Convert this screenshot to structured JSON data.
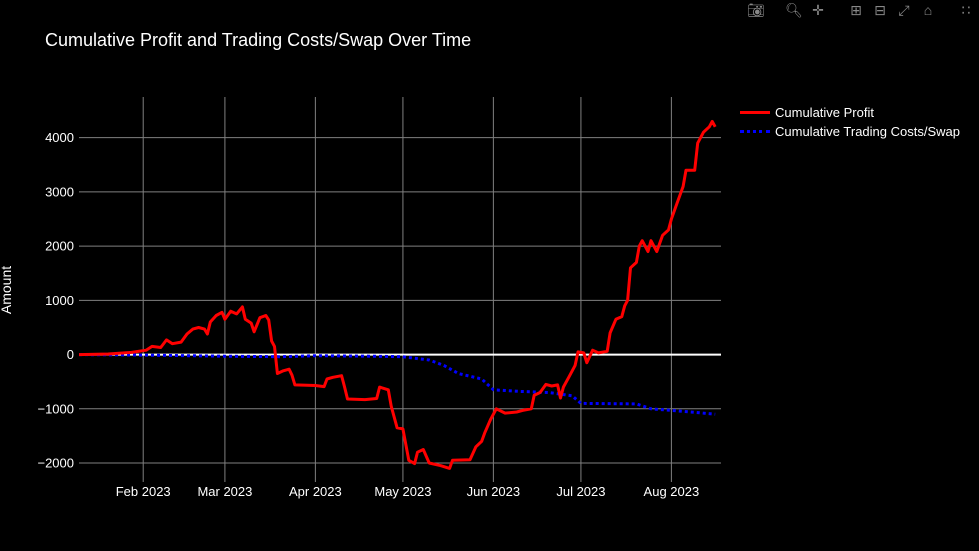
{
  "modebar": {
    "icons": [
      "camera-icon",
      "zoom-icon",
      "pan-icon",
      "zoom-in-icon",
      "zoom-out-icon",
      "autoscale-icon",
      "reset-axes-icon",
      "plotly-logo-icon"
    ]
  },
  "colors": {
    "background": "#000000",
    "grid": "#808080",
    "zero_line": "#ffffff",
    "profit": "#ff0000",
    "costs": "#0000ff"
  },
  "chart_data": {
    "type": "line",
    "title": "Cumulative Profit and Trading Costs/Swap Over Time",
    "xlabel": "",
    "ylabel": "Amount",
    "x_range": [
      "2023-01-10",
      "2023-08-18"
    ],
    "ylim": [
      -2350,
      4750
    ],
    "x_ticks": [
      {
        "date": "2023-02-01",
        "label": "Feb 2023"
      },
      {
        "date": "2023-03-01",
        "label": "Mar 2023"
      },
      {
        "date": "2023-04-01",
        "label": "Apr 2023"
      },
      {
        "date": "2023-05-01",
        "label": "May 2023"
      },
      {
        "date": "2023-06-01",
        "label": "Jun 2023"
      },
      {
        "date": "2023-07-01",
        "label": "Jul 2023"
      },
      {
        "date": "2023-08-01",
        "label": "Aug 2023"
      }
    ],
    "y_ticks": [
      -2000,
      -1000,
      0,
      1000,
      2000,
      3000,
      4000
    ],
    "grid": true,
    "legend_position": "top-right",
    "series": [
      {
        "name": "Cumulative Profit",
        "color": "#ff0000",
        "style": "solid",
        "points": [
          [
            "2023-01-10",
            0
          ],
          [
            "2023-01-20",
            10
          ],
          [
            "2023-01-28",
            40
          ],
          [
            "2023-02-02",
            80
          ],
          [
            "2023-02-04",
            150
          ],
          [
            "2023-02-07",
            130
          ],
          [
            "2023-02-09",
            270
          ],
          [
            "2023-02-11",
            200
          ],
          [
            "2023-02-14",
            230
          ],
          [
            "2023-02-16",
            380
          ],
          [
            "2023-02-18",
            470
          ],
          [
            "2023-02-20",
            500
          ],
          [
            "2023-02-22",
            470
          ],
          [
            "2023-02-23",
            380
          ],
          [
            "2023-02-24",
            600
          ],
          [
            "2023-02-26",
            720
          ],
          [
            "2023-02-28",
            780
          ],
          [
            "2023-03-01",
            650
          ],
          [
            "2023-03-03",
            800
          ],
          [
            "2023-03-05",
            750
          ],
          [
            "2023-03-07",
            880
          ],
          [
            "2023-03-08",
            650
          ],
          [
            "2023-03-10",
            580
          ],
          [
            "2023-03-11",
            420
          ],
          [
            "2023-03-13",
            680
          ],
          [
            "2023-03-15",
            720
          ],
          [
            "2023-03-16",
            640
          ],
          [
            "2023-03-17",
            250
          ],
          [
            "2023-03-18",
            150
          ],
          [
            "2023-03-19",
            -350
          ],
          [
            "2023-03-21",
            -300
          ],
          [
            "2023-03-23",
            -270
          ],
          [
            "2023-03-24",
            -380
          ],
          [
            "2023-03-25",
            -560
          ],
          [
            "2023-04-01",
            -570
          ],
          [
            "2023-04-04",
            -590
          ],
          [
            "2023-04-05",
            -450
          ],
          [
            "2023-04-07",
            -420
          ],
          [
            "2023-04-10",
            -390
          ],
          [
            "2023-04-11",
            -600
          ],
          [
            "2023-04-12",
            -820
          ],
          [
            "2023-04-18",
            -830
          ],
          [
            "2023-04-22",
            -810
          ],
          [
            "2023-04-23",
            -600
          ],
          [
            "2023-04-26",
            -650
          ],
          [
            "2023-04-27",
            -950
          ],
          [
            "2023-04-29",
            -1350
          ],
          [
            "2023-05-01",
            -1370
          ],
          [
            "2023-05-03",
            -1950
          ],
          [
            "2023-05-05",
            -2010
          ],
          [
            "2023-05-06",
            -1800
          ],
          [
            "2023-05-08",
            -1750
          ],
          [
            "2023-05-10",
            -2000
          ],
          [
            "2023-05-14",
            -2050
          ],
          [
            "2023-05-17",
            -2100
          ],
          [
            "2023-05-18",
            -1950
          ],
          [
            "2023-05-24",
            -1940
          ],
          [
            "2023-05-26",
            -1700
          ],
          [
            "2023-05-28",
            -1600
          ],
          [
            "2023-05-29",
            -1450
          ],
          [
            "2023-05-31",
            -1200
          ],
          [
            "2023-06-02",
            -1000
          ],
          [
            "2023-06-05",
            -1080
          ],
          [
            "2023-06-09",
            -1060
          ],
          [
            "2023-06-11",
            -1030
          ],
          [
            "2023-06-14",
            -1000
          ],
          [
            "2023-06-15",
            -750
          ],
          [
            "2023-06-17",
            -700
          ],
          [
            "2023-06-19",
            -550
          ],
          [
            "2023-06-21",
            -580
          ],
          [
            "2023-06-23",
            -560
          ],
          [
            "2023-06-24",
            -800
          ],
          [
            "2023-06-25",
            -600
          ],
          [
            "2023-06-27",
            -400
          ],
          [
            "2023-06-29",
            -200
          ],
          [
            "2023-06-30",
            50
          ],
          [
            "2023-07-02",
            30
          ],
          [
            "2023-07-03",
            -150
          ],
          [
            "2023-07-05",
            80
          ],
          [
            "2023-07-07",
            30
          ],
          [
            "2023-07-10",
            60
          ],
          [
            "2023-07-11",
            400
          ],
          [
            "2023-07-13",
            650
          ],
          [
            "2023-07-15",
            700
          ],
          [
            "2023-07-16",
            900
          ],
          [
            "2023-07-17",
            1000
          ],
          [
            "2023-07-18",
            1600
          ],
          [
            "2023-07-20",
            1700
          ],
          [
            "2023-07-21",
            2000
          ],
          [
            "2023-07-22",
            2100
          ],
          [
            "2023-07-24",
            1900
          ],
          [
            "2023-07-25",
            2100
          ],
          [
            "2023-07-27",
            1900
          ],
          [
            "2023-07-29",
            2200
          ],
          [
            "2023-07-31",
            2300
          ],
          [
            "2023-08-01",
            2500
          ],
          [
            "2023-08-03",
            2800
          ],
          [
            "2023-08-05",
            3100
          ],
          [
            "2023-08-06",
            3400
          ],
          [
            "2023-08-09",
            3400
          ],
          [
            "2023-08-10",
            3900
          ],
          [
            "2023-08-12",
            4100
          ],
          [
            "2023-08-14",
            4200
          ],
          [
            "2023-08-15",
            4300
          ],
          [
            "2023-08-16",
            4200
          ]
        ]
      },
      {
        "name": "Cumulative Trading Costs/Swap",
        "color": "#0000ff",
        "style": "dotted",
        "points": [
          [
            "2023-01-10",
            0
          ],
          [
            "2023-02-01",
            -10
          ],
          [
            "2023-03-01",
            -30
          ],
          [
            "2023-03-20",
            -40
          ],
          [
            "2023-04-01",
            -20
          ],
          [
            "2023-04-20",
            -30
          ],
          [
            "2023-05-01",
            -40
          ],
          [
            "2023-05-10",
            -100
          ],
          [
            "2023-05-15",
            -200
          ],
          [
            "2023-05-20",
            -350
          ],
          [
            "2023-05-28",
            -450
          ],
          [
            "2023-06-01",
            -650
          ],
          [
            "2023-06-10",
            -680
          ],
          [
            "2023-06-20",
            -700
          ],
          [
            "2023-06-28",
            -760
          ],
          [
            "2023-07-01",
            -900
          ],
          [
            "2023-07-20",
            -910
          ],
          [
            "2023-07-25",
            -1000
          ],
          [
            "2023-08-01",
            -1030
          ],
          [
            "2023-08-10",
            -1070
          ],
          [
            "2023-08-16",
            -1100
          ]
        ]
      }
    ]
  }
}
